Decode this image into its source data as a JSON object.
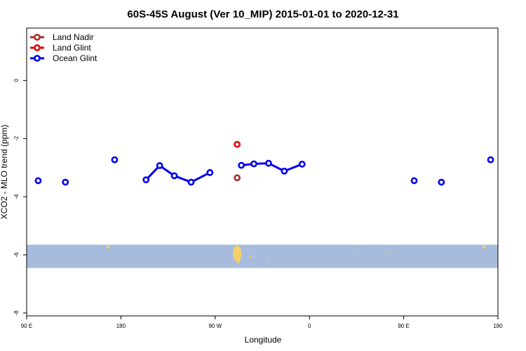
{
  "chart_data": {
    "type": "scatter",
    "title": "60S-45S August (Ver 10_MIP)   2015-01-01 to 2020-12-31",
    "xlabel": "Longitude",
    "ylabel": "XCO2 - MLO trend (ppm)",
    "x_ticks": [
      "90 E",
      "180",
      "90 W",
      "0",
      "90 E",
      "180"
    ],
    "x_tick_values": [
      90,
      180,
      270,
      360,
      450,
      540
    ],
    "y_ticks": [
      "0",
      "-2",
      "-4",
      "-6",
      "-8"
    ],
    "y_tick_values": [
      0,
      -2,
      -4,
      -6,
      -8
    ],
    "xlim": [
      90,
      540
    ],
    "ylim": [
      -8.1,
      1.8
    ],
    "legend_position": "top-left",
    "map_band": {
      "y_range": [
        -5.65,
        -6.45
      ],
      "color": "#a7bcdc",
      "land_color": "#f5cf6b"
    },
    "series": [
      {
        "name": "Land Nadir",
        "color": "#a52a2a",
        "connected": false,
        "points": [
          {
            "x": 291,
            "y": -3.35
          }
        ]
      },
      {
        "name": "Land Glint",
        "color": "#ee0000",
        "connected": false,
        "points": [
          {
            "x": 291,
            "y": -2.2
          }
        ]
      },
      {
        "name": "Ocean Glint",
        "color": "#0000ee",
        "connected": true,
        "points": [
          {
            "x": 101,
            "y": -3.45
          },
          {
            "x": 127,
            "y": -3.5
          },
          {
            "x": 174,
            "y": -2.73
          },
          {
            "x": 204,
            "y": -3.42
          },
          {
            "x": 217,
            "y": -2.93
          },
          {
            "x": 231,
            "y": -3.28
          },
          {
            "x": 247,
            "y": -3.5
          },
          {
            "x": 265,
            "y": -3.17
          },
          {
            "x": 295,
            "y": -2.92
          },
          {
            "x": 307,
            "y": -2.87
          },
          {
            "x": 321,
            "y": -2.85
          },
          {
            "x": 336,
            "y": -3.12
          },
          {
            "x": 353,
            "y": -2.88
          },
          {
            "x": 460,
            "y": -3.45
          },
          {
            "x": 486,
            "y": -3.5
          },
          {
            "x": 533,
            "y": -2.73
          }
        ]
      }
    ]
  }
}
